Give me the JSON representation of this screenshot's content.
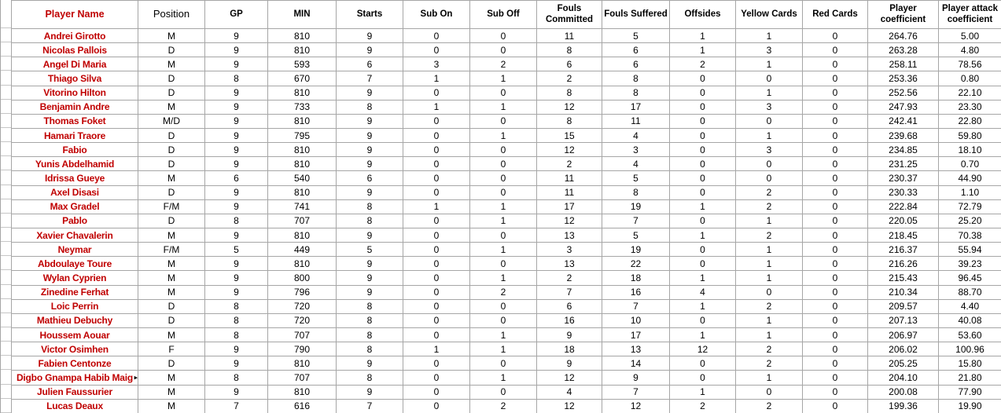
{
  "colors": {
    "player_name_red": "#c00000",
    "grid_border": "#a6a6a6",
    "gutter_gridline": "#c6c6c6",
    "text": "#000000",
    "background": "#ffffff"
  },
  "truncation_marker": "▸",
  "table": {
    "columns": [
      "Player Name",
      "Position",
      "GP",
      "MIN",
      "Starts",
      "Sub On",
      "Sub Off",
      "Fouls Committed",
      "Fouls Suffered",
      "Offsides",
      "Yellow Cards",
      "Red Cards",
      "Player coefficient",
      "Player attack coefficient"
    ],
    "truncated_name_row": 24,
    "rows": [
      [
        "Andrei Girotto",
        "M",
        "9",
        "810",
        "9",
        "0",
        "0",
        "11",
        "5",
        "1",
        "1",
        "0",
        "264.76",
        "5.00"
      ],
      [
        "Nicolas Pallois",
        "D",
        "9",
        "810",
        "9",
        "0",
        "0",
        "8",
        "6",
        "1",
        "3",
        "0",
        "263.28",
        "4.80"
      ],
      [
        "Angel Di Maria",
        "M",
        "9",
        "593",
        "6",
        "3",
        "2",
        "6",
        "6",
        "2",
        "1",
        "0",
        "258.11",
        "78.56"
      ],
      [
        "Thiago Silva",
        "D",
        "8",
        "670",
        "7",
        "1",
        "1",
        "2",
        "8",
        "0",
        "0",
        "0",
        "253.36",
        "0.80"
      ],
      [
        "Vitorino Hilton",
        "D",
        "9",
        "810",
        "9",
        "0",
        "0",
        "8",
        "8",
        "0",
        "1",
        "0",
        "252.56",
        "22.10"
      ],
      [
        "Benjamin Andre",
        "M",
        "9",
        "733",
        "8",
        "1",
        "1",
        "12",
        "17",
        "0",
        "3",
        "0",
        "247.93",
        "23.30"
      ],
      [
        "Thomas Foket",
        "M/D",
        "9",
        "810",
        "9",
        "0",
        "0",
        "8",
        "11",
        "0",
        "0",
        "0",
        "242.41",
        "22.80"
      ],
      [
        "Hamari Traore",
        "D",
        "9",
        "795",
        "9",
        "0",
        "1",
        "15",
        "4",
        "0",
        "1",
        "0",
        "239.68",
        "59.80"
      ],
      [
        "Fabio",
        "D",
        "9",
        "810",
        "9",
        "0",
        "0",
        "12",
        "3",
        "0",
        "3",
        "0",
        "234.85",
        "18.10"
      ],
      [
        "Yunis Abdelhamid",
        "D",
        "9",
        "810",
        "9",
        "0",
        "0",
        "2",
        "4",
        "0",
        "0",
        "0",
        "231.25",
        "0.70"
      ],
      [
        "Idrissa Gueye",
        "M",
        "6",
        "540",
        "6",
        "0",
        "0",
        "11",
        "5",
        "0",
        "0",
        "0",
        "230.37",
        "44.90"
      ],
      [
        "Axel Disasi",
        "D",
        "9",
        "810",
        "9",
        "0",
        "0",
        "11",
        "8",
        "0",
        "2",
        "0",
        "230.33",
        "1.10"
      ],
      [
        "Max Gradel",
        "F/M",
        "9",
        "741",
        "8",
        "1",
        "1",
        "17",
        "19",
        "1",
        "2",
        "0",
        "222.84",
        "72.79"
      ],
      [
        "Pablo",
        "D",
        "8",
        "707",
        "8",
        "0",
        "1",
        "12",
        "7",
        "0",
        "1",
        "0",
        "220.05",
        "25.20"
      ],
      [
        "Xavier Chavalerin",
        "M",
        "9",
        "810",
        "9",
        "0",
        "0",
        "13",
        "5",
        "1",
        "2",
        "0",
        "218.45",
        "70.38"
      ],
      [
        "Neymar",
        "F/M",
        "5",
        "449",
        "5",
        "0",
        "1",
        "3",
        "19",
        "0",
        "1",
        "0",
        "216.37",
        "55.94"
      ],
      [
        "Abdoulaye Toure",
        "M",
        "9",
        "810",
        "9",
        "0",
        "0",
        "13",
        "22",
        "0",
        "1",
        "0",
        "216.26",
        "39.23"
      ],
      [
        "Wylan Cyprien",
        "M",
        "9",
        "800",
        "9",
        "0",
        "1",
        "2",
        "18",
        "1",
        "1",
        "0",
        "215.43",
        "96.45"
      ],
      [
        "Zinedine Ferhat",
        "M",
        "9",
        "796",
        "9",
        "0",
        "2",
        "7",
        "16",
        "4",
        "0",
        "0",
        "210.34",
        "88.70"
      ],
      [
        "Loic Perrin",
        "D",
        "8",
        "720",
        "8",
        "0",
        "0",
        "6",
        "7",
        "1",
        "2",
        "0",
        "209.57",
        "4.40"
      ],
      [
        "Mathieu Debuchy",
        "D",
        "8",
        "720",
        "8",
        "0",
        "0",
        "16",
        "10",
        "0",
        "1",
        "0",
        "207.13",
        "40.08"
      ],
      [
        "Houssem Aouar",
        "M",
        "8",
        "707",
        "8",
        "0",
        "1",
        "9",
        "17",
        "1",
        "1",
        "0",
        "206.97",
        "53.60"
      ],
      [
        "Victor Osimhen",
        "F",
        "9",
        "790",
        "8",
        "1",
        "1",
        "18",
        "13",
        "12",
        "2",
        "0",
        "206.02",
        "100.96"
      ],
      [
        "Fabien Centonze",
        "D",
        "9",
        "810",
        "9",
        "0",
        "0",
        "9",
        "14",
        "0",
        "2",
        "0",
        "205.25",
        "15.80"
      ],
      [
        "Digbo Gnampa Habib Maig",
        "M",
        "8",
        "707",
        "8",
        "0",
        "1",
        "12",
        "9",
        "0",
        "1",
        "0",
        "204.10",
        "21.80"
      ],
      [
        "Julien Faussurier",
        "M",
        "9",
        "810",
        "9",
        "0",
        "0",
        "4",
        "7",
        "1",
        "0",
        "0",
        "200.08",
        "77.90"
      ],
      [
        "Lucas Deaux",
        "M",
        "7",
        "616",
        "7",
        "0",
        "2",
        "12",
        "12",
        "2",
        "2",
        "0",
        "199.36",
        "19.90"
      ]
    ]
  }
}
